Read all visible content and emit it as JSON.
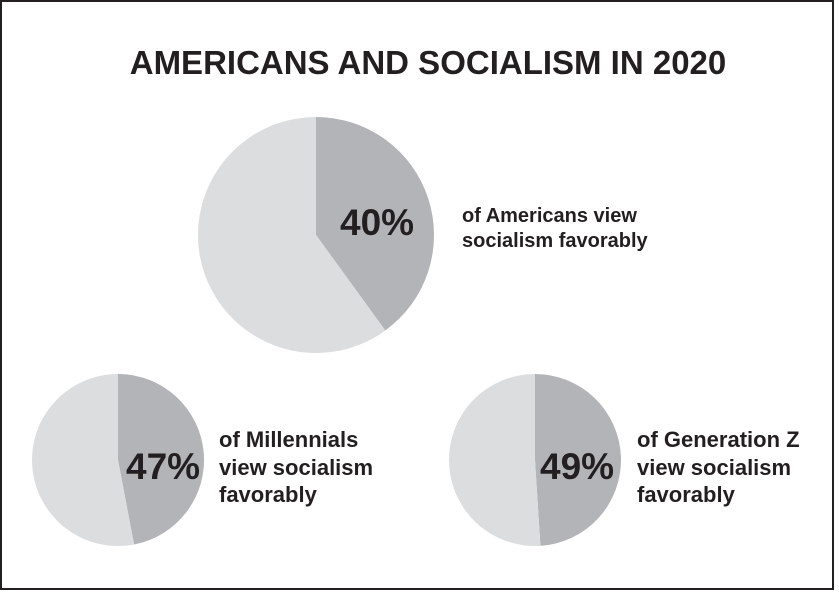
{
  "colors": {
    "favorable": "#b3b4b7",
    "rest": "#dcdddf",
    "text": "#231f20",
    "border": "#231f20"
  },
  "title": "AMERICANS AND SOCIALISM IN 2020",
  "chart_data": [
    {
      "type": "pie",
      "title": "AMERICANS AND SOCIALISM IN 2020",
      "label": "40%",
      "caption": [
        "of Americans view",
        "socialism favorably"
      ],
      "slices": [
        {
          "value": 40
        },
        {
          "value": 60
        }
      ]
    },
    {
      "type": "pie",
      "label": "47%",
      "caption": [
        "of Millennials",
        "view socialism",
        "favorably"
      ],
      "slices": [
        {
          "value": 47
        },
        {
          "value": 53
        }
      ]
    },
    {
      "type": "pie",
      "label": "49%",
      "caption": [
        "of Generation Z",
        "view socialism",
        "favorably"
      ],
      "slices": [
        {
          "value": 49
        },
        {
          "value": 51
        }
      ]
    }
  ]
}
